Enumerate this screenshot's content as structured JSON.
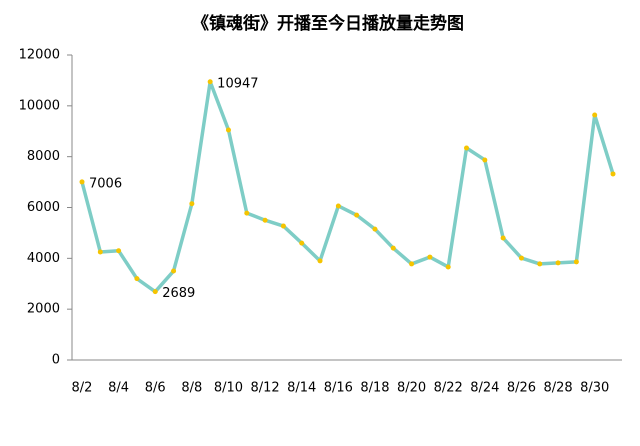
{
  "chart_data": {
    "type": "line",
    "title": "《镇魂街》开播至今日播放量走势图",
    "categories": [
      "8/2",
      null,
      "8/4",
      null,
      "8/6",
      null,
      "8/8",
      null,
      "8/10",
      null,
      "8/12",
      null,
      "8/14",
      null,
      "8/16",
      null,
      "8/18",
      null,
      "8/20",
      null,
      "8/22",
      null,
      "8/24",
      null,
      "8/26",
      null,
      "8/28",
      null,
      "8/30",
      null
    ],
    "series": [
      {
        "color": "#7ecdc6",
        "marker_color": "#f5c400",
        "values": [
          7006,
          4250,
          4300,
          3200,
          2689,
          3500,
          6150,
          10947,
          9050,
          5780,
          5500,
          5270,
          4600,
          3900,
          6060,
          5700,
          5150,
          4400,
          3780,
          4050,
          3660,
          8340,
          7870,
          4800,
          4010,
          3780,
          3820,
          3860,
          9640,
          7320
        ],
        "value_labels": [
          "7006",
          null,
          null,
          null,
          "2689",
          null,
          null,
          "10947",
          null,
          null,
          null,
          null,
          null,
          null,
          null,
          null,
          null,
          null,
          null,
          null,
          null,
          null,
          null,
          null,
          null,
          null,
          null,
          null,
          null,
          null
        ]
      }
    ],
    "ylim": [
      0,
      12000
    ],
    "yticks": [
      0,
      2000,
      4000,
      6000,
      8000,
      10000,
      12000
    ],
    "grid": false
  }
}
